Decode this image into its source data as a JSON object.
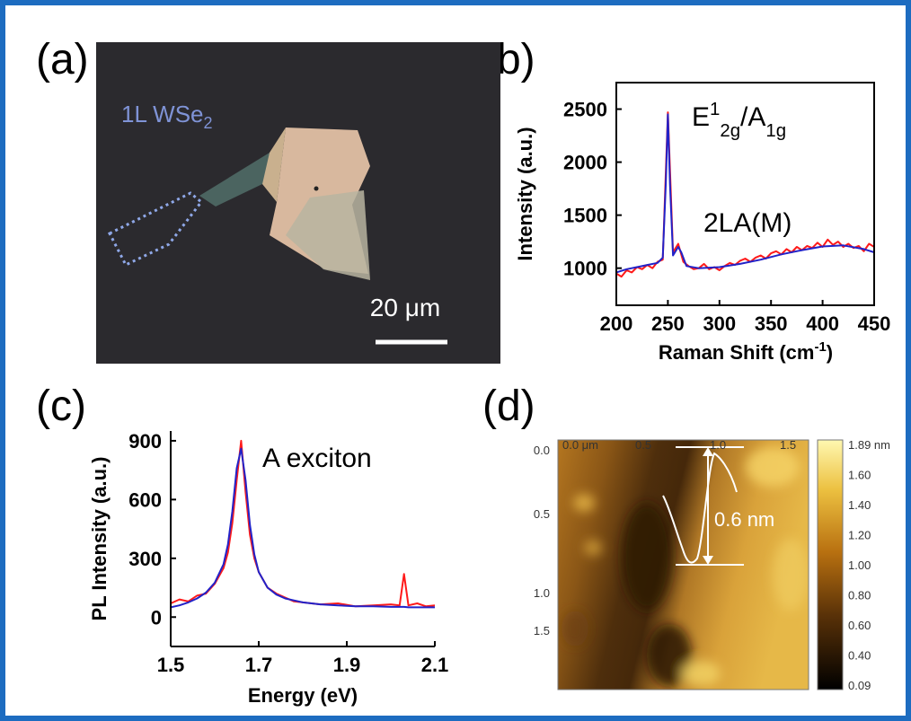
{
  "panel_labels": [
    "(a)",
    "(b)",
    "(c)",
    "(d)"
  ],
  "micrograph": {
    "sample_label": [
      "1L WSe",
      "2"
    ],
    "scale_bar": "20 μm"
  },
  "chart_data": [
    {
      "type": "line",
      "xlabel": [
        "Raman Shift (cm",
        "-1",
        ")"
      ],
      "ylabel": "Intensity (a.u.)",
      "annotations": [
        [
          "E",
          "1",
          "2g",
          "/A",
          "1g"
        ],
        [
          "2LA(M)"
        ]
      ],
      "xlim": [
        200,
        450
      ],
      "xticks": [
        200,
        250,
        300,
        350,
        400,
        450
      ],
      "ylim": [
        650,
        2750
      ],
      "yticks": [
        1000,
        1500,
        2000,
        2500
      ],
      "series": [
        {
          "color": "#ff1a1a",
          "x": [
            200,
            205,
            210,
            215,
            220,
            225,
            230,
            235,
            240,
            245,
            250,
            255,
            260,
            265,
            270,
            275,
            280,
            285,
            290,
            295,
            300,
            305,
            310,
            315,
            320,
            325,
            330,
            335,
            340,
            345,
            350,
            355,
            360,
            365,
            370,
            375,
            380,
            385,
            390,
            395,
            400,
            405,
            410,
            415,
            420,
            425,
            430,
            435,
            440,
            445,
            450
          ],
          "values": [
            950,
            920,
            980,
            960,
            1010,
            990,
            1030,
            1000,
            1060,
            1080,
            2470,
            1150,
            1230,
            1060,
            1020,
            990,
            1000,
            1040,
            990,
            1010,
            980,
            1020,
            1050,
            1030,
            1070,
            1090,
            1060,
            1100,
            1120,
            1090,
            1140,
            1160,
            1130,
            1180,
            1150,
            1200,
            1170,
            1210,
            1190,
            1240,
            1200,
            1270,
            1220,
            1250,
            1200,
            1230,
            1190,
            1210,
            1160,
            1230,
            1200
          ]
        },
        {
          "color": "#2222c8",
          "x": [
            200,
            210,
            220,
            230,
            240,
            245,
            248,
            250,
            252,
            255,
            260,
            263,
            268,
            280,
            300,
            320,
            340,
            360,
            380,
            400,
            420,
            440,
            450
          ],
          "values": [
            960,
            990,
            1010,
            1030,
            1050,
            1100,
            1800,
            2450,
            1800,
            1120,
            1200,
            1150,
            1020,
            1000,
            1010,
            1040,
            1080,
            1130,
            1170,
            1205,
            1215,
            1180,
            1150
          ]
        }
      ]
    },
    {
      "type": "line",
      "xlabel": [
        "Energy (eV)"
      ],
      "ylabel": "PL Intensity (a.u.)",
      "annotations": [
        [
          "A exciton"
        ]
      ],
      "xlim": [
        1.5,
        2.1
      ],
      "xticks": [
        1.5,
        1.7,
        1.9,
        2.1
      ],
      "ylim": [
        -150,
        950
      ],
      "yticks": [
        0,
        300,
        600,
        900
      ],
      "series": [
        {
          "color": "#ff1a1a",
          "x": [
            1.5,
            1.52,
            1.54,
            1.56,
            1.58,
            1.6,
            1.62,
            1.63,
            1.64,
            1.65,
            1.66,
            1.67,
            1.68,
            1.69,
            1.7,
            1.72,
            1.74,
            1.76,
            1.78,
            1.8,
            1.84,
            1.88,
            1.92,
            1.96,
            2.0,
            2.02,
            2.03,
            2.04,
            2.06,
            2.08,
            2.1
          ],
          "values": [
            70,
            90,
            80,
            110,
            120,
            170,
            250,
            330,
            480,
            700,
            900,
            640,
            420,
            300,
            230,
            150,
            120,
            100,
            80,
            75,
            65,
            70,
            55,
            60,
            65,
            60,
            220,
            60,
            70,
            55,
            60
          ]
        },
        {
          "color": "#2222c8",
          "x": [
            1.5,
            1.52,
            1.54,
            1.56,
            1.58,
            1.6,
            1.62,
            1.63,
            1.64,
            1.65,
            1.66,
            1.67,
            1.68,
            1.69,
            1.7,
            1.72,
            1.74,
            1.76,
            1.78,
            1.8,
            1.84,
            1.88,
            1.92,
            1.96,
            2.0,
            2.02,
            2.03,
            2.04,
            2.06,
            2.08,
            2.1
          ],
          "values": [
            50,
            60,
            75,
            95,
            125,
            175,
            270,
            370,
            540,
            760,
            860,
            700,
            470,
            320,
            230,
            150,
            115,
            95,
            85,
            75,
            65,
            60,
            55,
            55,
            52,
            52,
            52,
            50,
            50,
            50,
            50
          ]
        }
      ]
    }
  ],
  "afm": {
    "x_labels": [
      "0.0 μm",
      "0.5",
      "1.0",
      "1.5"
    ],
    "y_labels": [
      "0.0",
      "0.5",
      "1.0",
      "1.5"
    ],
    "colorbar_labels": [
      "1.89 nm",
      "1.60",
      "1.40",
      "1.20",
      "1.00",
      "0.80",
      "0.60",
      "0.40",
      "0.09"
    ],
    "height_annotation": "0.6 nm"
  }
}
